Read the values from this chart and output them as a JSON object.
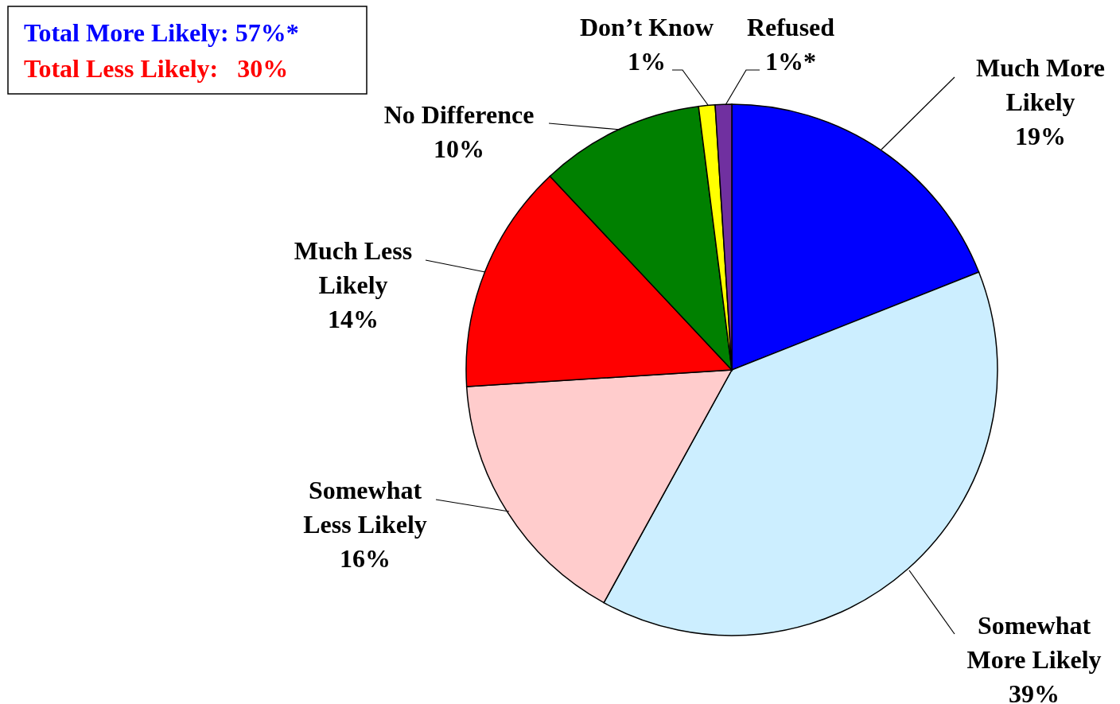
{
  "chart_data": {
    "type": "pie",
    "categories": [
      "Much More Likely",
      "Somewhat More Likely",
      "Somewhat Less Likely",
      "Much Less Likely",
      "No Difference",
      "Don’t Know",
      "Refused"
    ],
    "values": [
      19,
      39,
      16,
      14,
      10,
      1,
      1
    ],
    "value_labels": [
      "19%",
      "39%",
      "16%",
      "14%",
      "10%",
      "1%",
      "1%*"
    ],
    "colors": [
      "#0000ff",
      "#cceeff",
      "#ffcccc",
      "#ff0000",
      "#008000",
      "#ffff00",
      "#7030a0"
    ],
    "annotations": [
      "Total More Likely: 57%*",
      "Total Less Likely:   30%"
    ]
  }
}
